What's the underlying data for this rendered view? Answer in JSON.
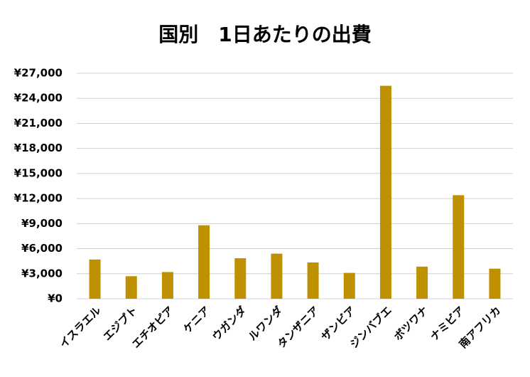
{
  "chart_data": {
    "type": "bar",
    "title": "国別　1日あたりの出費",
    "categories": [
      "イスラエル",
      "エジプト",
      "エチオピア",
      "ケニア",
      "ウガンダ",
      "ルワンダ",
      "タンザニア",
      "ザンビア",
      "ジンバブエ",
      "ボツワナ",
      "ナミビア",
      "南アフリカ"
    ],
    "values": [
      4700,
      2700,
      3200,
      8800,
      4850,
      5400,
      4350,
      3100,
      25500,
      3850,
      12400,
      3600
    ],
    "color": "#bf9000",
    "ylim": [
      0,
      27000
    ],
    "yticks": [
      {
        "value": 0,
        "label": "¥0"
      },
      {
        "value": 3000,
        "label": "¥3,000"
      },
      {
        "value": 6000,
        "label": "¥6,000"
      },
      {
        "value": 9000,
        "label": "¥9,000"
      },
      {
        "value": 12000,
        "label": "¥12,000"
      },
      {
        "value": 15000,
        "label": "¥15,000"
      },
      {
        "value": 18000,
        "label": "¥18,000"
      },
      {
        "value": 21000,
        "label": "¥21,000"
      },
      {
        "value": 24000,
        "label": "¥24,000"
      },
      {
        "value": 27000,
        "label": "¥27,000"
      }
    ],
    "grid": true
  }
}
